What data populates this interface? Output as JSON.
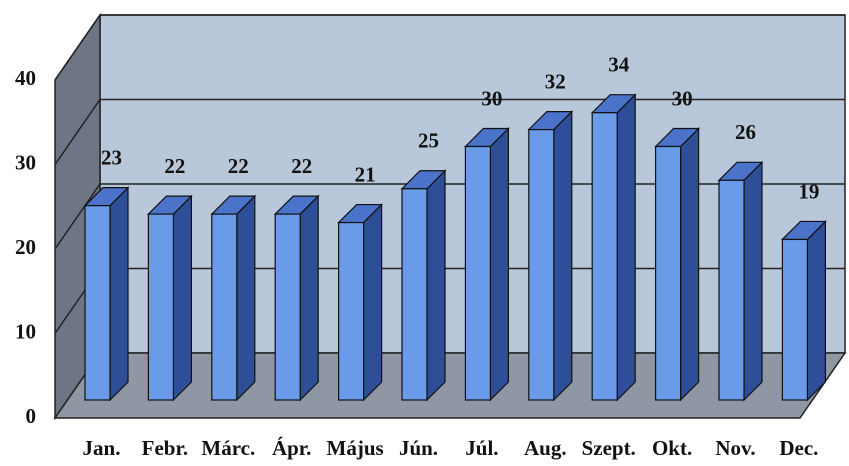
{
  "chart_data": {
    "type": "bar3d",
    "categories": [
      "Jan.",
      "Febr.",
      "Márc.",
      "Ápr.",
      "Május",
      "Jún.",
      "Júl.",
      "Aug.",
      "Szept.",
      "Okt.",
      "Nov.",
      "Dec."
    ],
    "values": [
      23,
      22,
      22,
      22,
      21,
      25,
      30,
      32,
      34,
      30,
      26,
      19
    ],
    "color": "#6a9be8",
    "ylim": [
      0,
      40
    ],
    "yticks": [
      0,
      10,
      20,
      30,
      40
    ],
    "grid": true
  }
}
